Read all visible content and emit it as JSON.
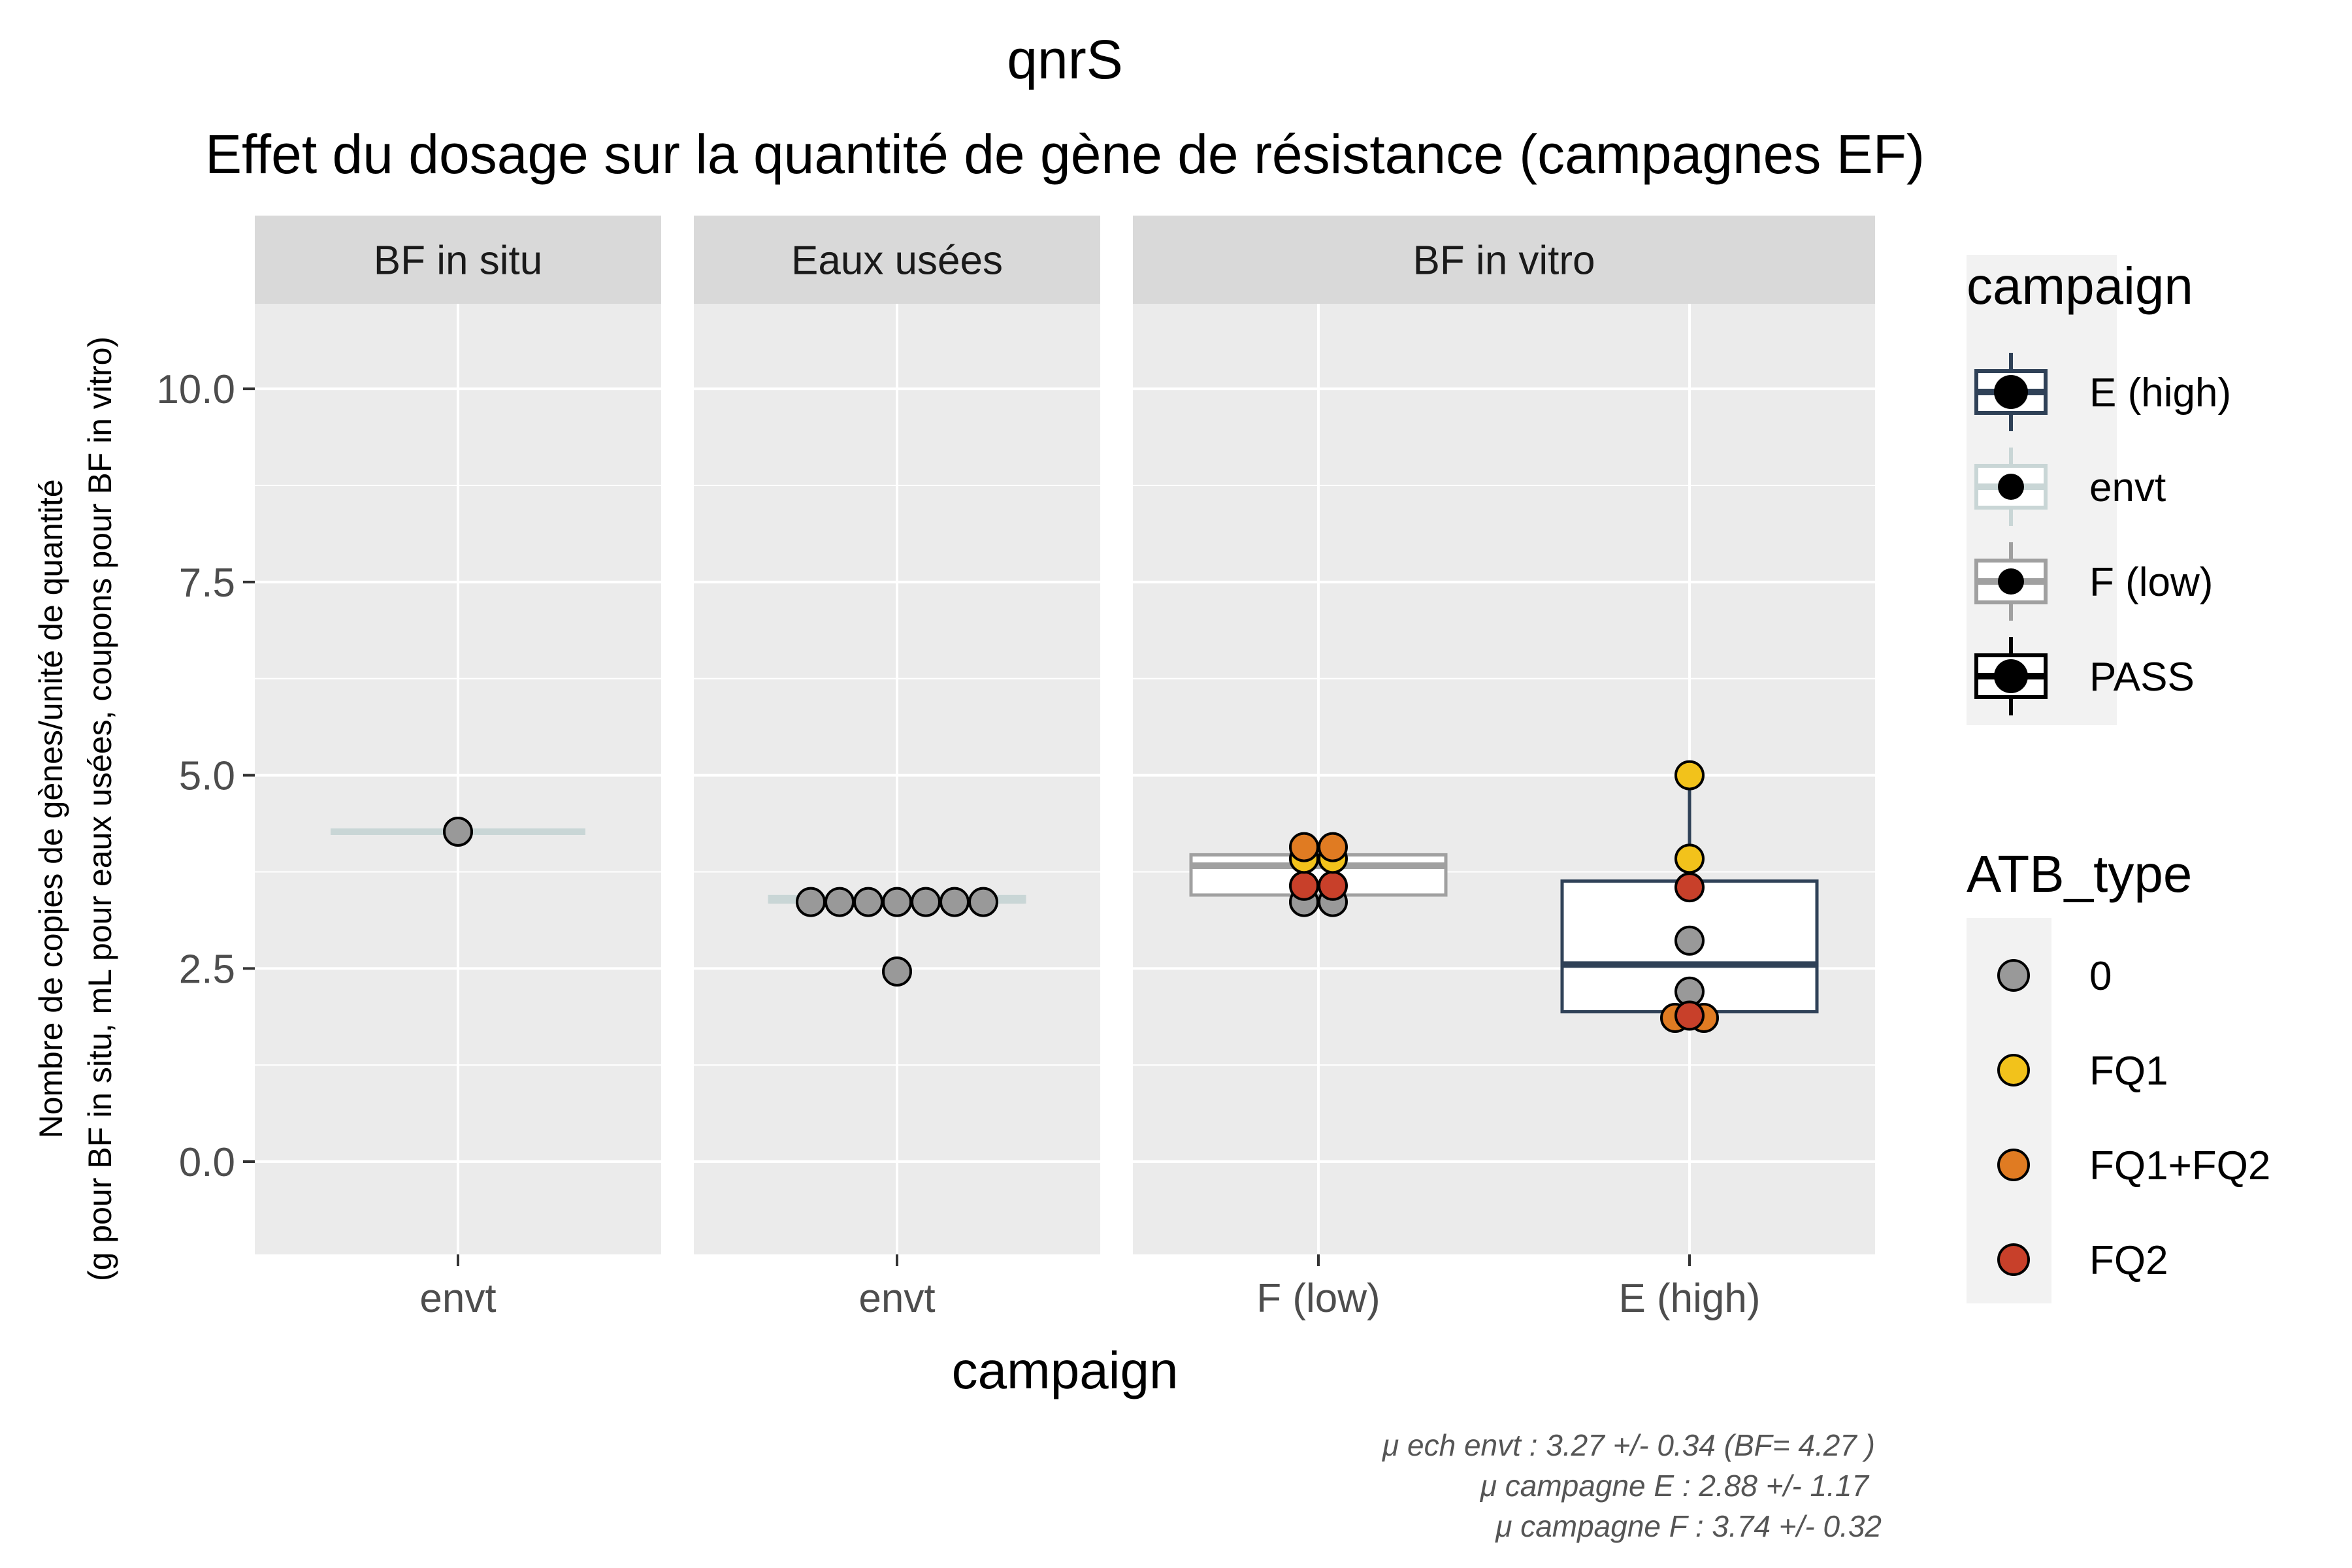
{
  "chart_data": {
    "type": "box",
    "title": "qnrS",
    "subtitle": "Effet du dosage sur la quantité de gène de résistance (campagnes EF)",
    "xlabel": "campaign",
    "ylabel_line1": "Nombre de copies de gènes/unité de quantité",
    "ylabel_line2": "(g pour BF in situ, mL pour eaux usées, coupons pour BF in vitro)",
    "ylim": [
      -1.2,
      11.1
    ],
    "yticks": [
      0.0,
      2.5,
      5.0,
      7.5,
      10.0
    ],
    "ytick_labels": [
      "0.0",
      "2.5",
      "5.0",
      "7.5",
      "10.0"
    ],
    "grid": true,
    "panels": [
      {
        "strip": "BF in situ",
        "categories": [
          "envt"
        ],
        "boxes": [
          {
            "category": "envt",
            "campaign": "envt",
            "q1": 4.27,
            "median": 4.27,
            "q3": 4.27,
            "whisker_low": 4.27,
            "whisker_high": 4.27
          }
        ],
        "points": [
          {
            "category": "envt",
            "y": 4.27,
            "atb": "0"
          }
        ]
      },
      {
        "strip": "Eaux usées",
        "categories": [
          "envt"
        ],
        "boxes": [
          {
            "category": "envt",
            "campaign": "envt",
            "q1": 3.36,
            "median": 3.38,
            "q3": 3.43,
            "whisker_low": 3.33,
            "whisker_high": 3.45
          }
        ],
        "points": [
          {
            "category": "envt",
            "y": 3.36,
            "atb": "0"
          },
          {
            "category": "envt",
            "y": 3.36,
            "atb": "0"
          },
          {
            "category": "envt",
            "y": 3.36,
            "atb": "0"
          },
          {
            "category": "envt",
            "y": 3.36,
            "atb": "0"
          },
          {
            "category": "envt",
            "y": 3.36,
            "atb": "0"
          },
          {
            "category": "envt",
            "y": 3.36,
            "atb": "0"
          },
          {
            "category": "envt",
            "y": 3.36,
            "atb": "0"
          },
          {
            "category": "envt",
            "y": 2.46,
            "atb": "0"
          }
        ]
      },
      {
        "strip": "BF in vitro",
        "categories": [
          "F (low)",
          "E (high)"
        ],
        "boxes": [
          {
            "category": "F (low)",
            "campaign": "F (low)",
            "q1": 3.45,
            "median": 3.83,
            "q3": 3.97,
            "whisker_low": 3.36,
            "whisker_high": 4.07
          },
          {
            "category": "E (high)",
            "campaign": "E (high)",
            "q1": 1.94,
            "median": 2.55,
            "q3": 3.63,
            "whisker_low": 1.85,
            "whisker_high": 5.0
          }
        ],
        "points": [
          {
            "category": "F (low)",
            "y": 3.36,
            "atb": "0"
          },
          {
            "category": "F (low)",
            "y": 3.36,
            "atb": "0"
          },
          {
            "category": "F (low)",
            "y": 3.57,
            "atb": "FQ2"
          },
          {
            "category": "F (low)",
            "y": 3.57,
            "atb": "FQ2"
          },
          {
            "category": "F (low)",
            "y": 3.92,
            "atb": "FQ1"
          },
          {
            "category": "F (low)",
            "y": 3.92,
            "atb": "FQ1"
          },
          {
            "category": "F (low)",
            "y": 4.07,
            "atb": "FQ1+FQ2"
          },
          {
            "category": "F (low)",
            "y": 4.07,
            "atb": "FQ1+FQ2"
          },
          {
            "category": "E (high)",
            "y": 5.0,
            "atb": "FQ1"
          },
          {
            "category": "E (high)",
            "y": 3.92,
            "atb": "FQ1"
          },
          {
            "category": "E (high)",
            "y": 3.55,
            "atb": "FQ2"
          },
          {
            "category": "E (high)",
            "y": 2.86,
            "atb": "0"
          },
          {
            "category": "E (high)",
            "y": 2.2,
            "atb": "0"
          },
          {
            "category": "E (high)",
            "y": 1.86,
            "atb": "FQ1+FQ2"
          },
          {
            "category": "E (high)",
            "y": 1.86,
            "atb": "FQ1+FQ2"
          },
          {
            "category": "E (high)",
            "y": 1.89,
            "atb": "FQ2"
          }
        ]
      }
    ],
    "legend_campaign": {
      "title": "campaign",
      "entries": [
        {
          "label": "E (high)",
          "color": "#2f4157"
        },
        {
          "label": "envt",
          "color": "#c9d6d6"
        },
        {
          "label": "F (low)",
          "color": "#a0a0a0"
        },
        {
          "label": "PASS",
          "color": "#000000"
        }
      ]
    },
    "legend_atb": {
      "title": "ATB_type",
      "entries": [
        {
          "label": "0",
          "color": "#999999"
        },
        {
          "label": "FQ1",
          "color": "#f2c21b"
        },
        {
          "label": "FQ1+FQ2",
          "color": "#e07b22"
        },
        {
          "label": "FQ2",
          "color": "#c8402a"
        }
      ]
    },
    "caption": [
      "μ ech envt :  3.27 +/- 0.34  (BF= 4.27 )",
      "μ campagne E :  2.88 +/- 1.17",
      "μ campagne F :  3.74 +/- 0.32"
    ]
  }
}
